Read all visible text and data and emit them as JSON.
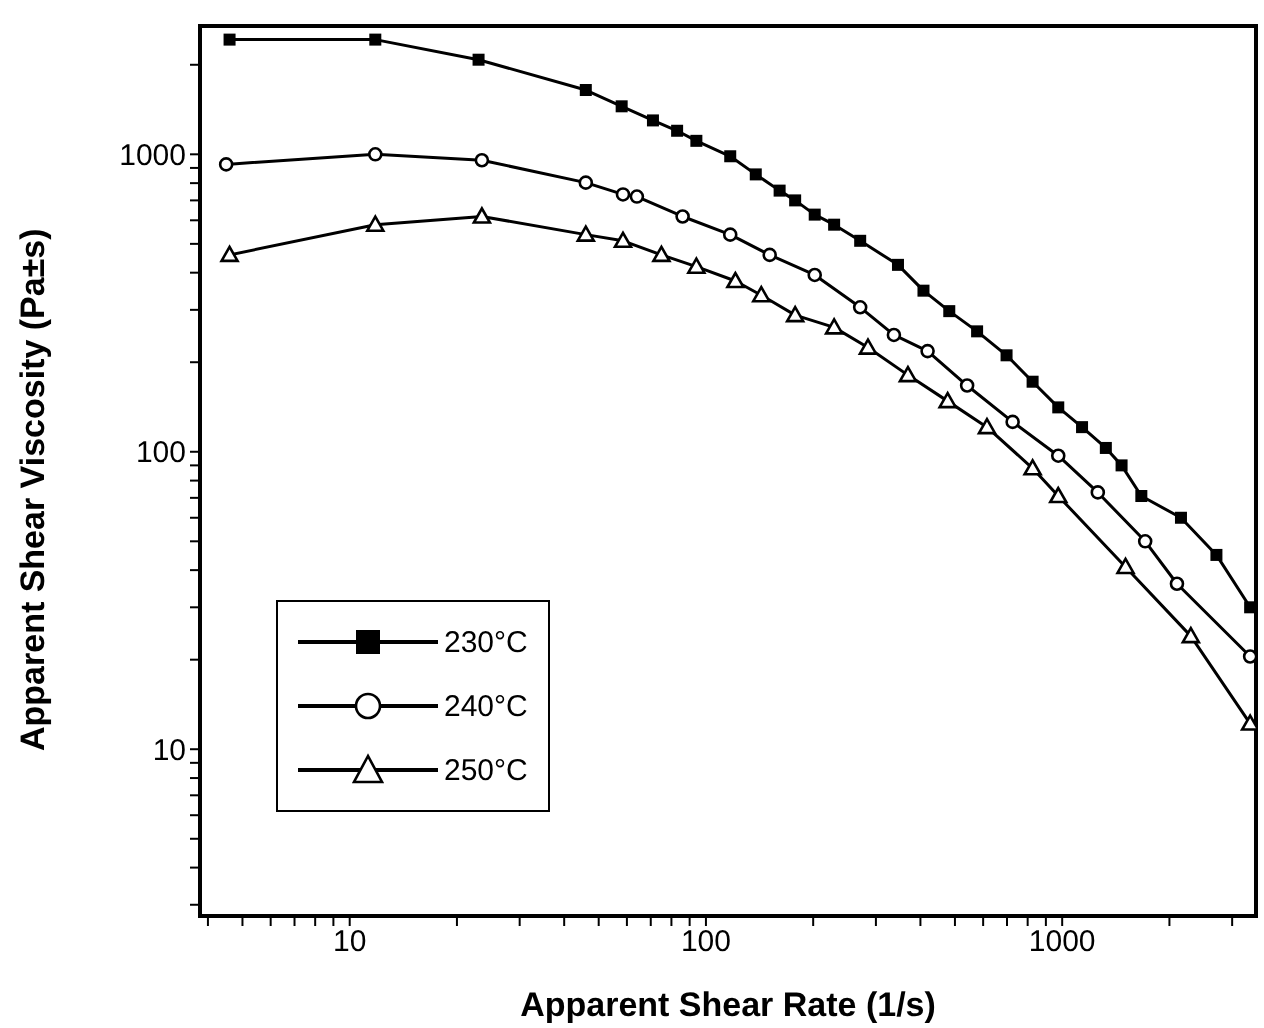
{
  "chart_data": {
    "type": "line",
    "xlabel": "Apparent Shear Rate (1/s)",
    "ylabel": "Apparent Shear Viscosity (Pa±s)",
    "log": "xy",
    "legend": "bottom left",
    "line_style": "solid",
    "xlim": [
      3.8,
      3500
    ],
    "ylim": [
      2.75,
      2700
    ],
    "xticks": [
      {
        "value": 4,
        "label": null
      },
      {
        "value": 5,
        "label": null
      },
      {
        "value": 6,
        "label": null
      },
      {
        "value": 7,
        "label": null
      },
      {
        "value": 8,
        "label": null
      },
      {
        "value": 9,
        "label": null
      },
      10,
      {
        "value": 20,
        "label": null
      },
      {
        "value": 30,
        "label": null
      },
      {
        "value": 40,
        "label": null
      },
      {
        "value": 50,
        "label": null
      },
      {
        "value": 60,
        "label": null
      },
      {
        "value": 70,
        "label": null
      },
      {
        "value": 80,
        "label": null
      },
      {
        "value": 90,
        "label": null
      },
      100,
      {
        "value": 200,
        "label": null
      },
      {
        "value": 300,
        "label": null
      },
      {
        "value": 400,
        "label": null
      },
      {
        "value": 500,
        "label": null
      },
      {
        "value": 600,
        "label": null
      },
      {
        "value": 700,
        "label": null
      },
      {
        "value": 800,
        "label": null
      },
      {
        "value": 900,
        "label": null
      },
      1000,
      {
        "value": 2000,
        "label": null
      },
      {
        "value": 3000,
        "label": null
      }
    ],
    "yticks": [
      {
        "value": 3,
        "label": null
      },
      {
        "value": 4,
        "label": null
      },
      {
        "value": 5,
        "label": null
      },
      {
        "value": 6,
        "label": null
      },
      {
        "value": 7,
        "label": null
      },
      {
        "value": 8,
        "label": null
      },
      {
        "value": 9,
        "label": null
      },
      10,
      {
        "value": 20,
        "label": null
      },
      {
        "value": 30,
        "label": null
      },
      {
        "value": 40,
        "label": null
      },
      {
        "value": 50,
        "label": null
      },
      {
        "value": 60,
        "label": null
      },
      {
        "value": 70,
        "label": null
      },
      {
        "value": 80,
        "label": null
      },
      {
        "value": 90,
        "label": null
      },
      100,
      {
        "value": 200,
        "label": null
      },
      {
        "value": 300,
        "label": null
      },
      {
        "value": 400,
        "label": null
      },
      {
        "value": 500,
        "label": null
      },
      {
        "value": 600,
        "label": null
      },
      {
        "value": 700,
        "label": null
      },
      {
        "value": 800,
        "label": null
      },
      {
        "value": 900,
        "label": null
      },
      1000,
      {
        "value": 2000,
        "label": null
      }
    ],
    "series": [
      {
        "name": "230°C",
        "color": "#000000",
        "marker": "square",
        "x": [
          4.6,
          11.8,
          23,
          46,
          58,
          71,
          83,
          94,
          117,
          138,
          161,
          178,
          202,
          229,
          271,
          346,
          408,
          482,
          577,
          698,
          826,
          975,
          1137,
          1326,
          1468,
          1668,
          2155,
          2710,
          3370
        ],
        "values": [
          2430,
          2430,
          2080,
          1645,
          1450,
          1300,
          1200,
          1110,
          985,
          856,
          755,
          700,
          627,
          580,
          512,
          425,
          348,
          297,
          254,
          211,
          172,
          141,
          121,
          103,
          90,
          71,
          60,
          45,
          30
        ]
      },
      {
        "name": "240°C",
        "color": "#000000",
        "marker": "circle",
        "x": [
          4.5,
          11.8,
          23.5,
          46,
          58.5,
          64,
          86,
          117,
          151,
          202,
          271,
          337,
          419,
          541,
          726,
          975,
          1259,
          1710,
          2100,
          3370
        ],
        "values": [
          925,
          1000,
          955,
          803,
          733,
          721,
          618,
          537,
          459,
          393,
          306,
          247,
          218,
          167,
          126,
          97,
          73,
          50,
          36,
          20.5
        ]
      },
      {
        "name": "250°C",
        "color": "#000000",
        "marker": "triangle",
        "x": [
          4.6,
          11.8,
          23.5,
          46,
          58.5,
          75,
          94,
          121,
          143,
          178,
          229,
          285,
          369,
          477,
          615,
          826,
          975,
          1506,
          2297,
          3370
        ],
        "values": [
          459,
          580,
          618,
          537,
          512,
          459,
          419,
          375,
          336,
          288,
          262,
          224,
          181,
          148,
          121,
          88,
          71,
          41,
          24,
          12.2
        ]
      }
    ]
  }
}
